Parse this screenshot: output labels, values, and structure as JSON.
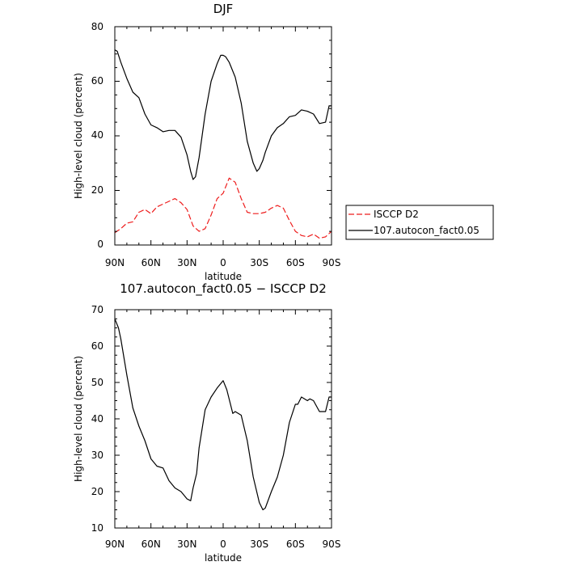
{
  "colors": {
    "model": "#000000",
    "obs": "#ee1c1c",
    "axis": "#000000"
  },
  "chart_data": [
    {
      "type": "line",
      "title": "DJF",
      "xlabel": "latitude",
      "ylabel": "High-level cloud (percent)",
      "xlim": [
        90,
        -90
      ],
      "ylim": [
        0,
        80
      ],
      "xticks": [
        90,
        60,
        30,
        0,
        -30,
        -60,
        -90
      ],
      "xtick_labels": [
        "90N",
        "60N",
        "30N",
        "0",
        "30S",
        "60S",
        "90S"
      ],
      "yticks": [
        0,
        20,
        40,
        60,
        80
      ],
      "ytick_labels": [
        "0",
        "20",
        "40",
        "60",
        "80"
      ],
      "legend": {
        "placement": "right",
        "entries": [
          "ISCCP D2",
          "107.autocon_fact0.05"
        ]
      },
      "series": [
        {
          "name": "ISCCP D2",
          "style": "dashed",
          "x": [
            90,
            85,
            80,
            75,
            70,
            65,
            60,
            55,
            50,
            45,
            40,
            35,
            30,
            25,
            20,
            15,
            10,
            5,
            0,
            -5,
            -10,
            -15,
            -20,
            -25,
            -30,
            -35,
            -40,
            -45,
            -50,
            -55,
            -60,
            -65,
            -70,
            -75,
            -80,
            -85,
            -90
          ],
          "y": [
            4.5,
            6,
            8,
            8.5,
            12,
            13,
            11.5,
            14,
            15,
            16,
            17,
            15.5,
            13,
            7,
            5,
            6,
            11,
            17,
            19,
            24.5,
            23,
            17,
            12,
            11.5,
            11.5,
            12,
            13.5,
            14.5,
            13.5,
            9,
            5,
            3.5,
            3,
            4,
            2.5,
            3,
            5
          ]
        },
        {
          "name": "107.autocon_fact0.05",
          "style": "solid",
          "x": [
            90,
            88,
            85,
            80,
            75,
            70,
            65,
            60,
            55,
            50,
            45,
            40,
            35,
            30,
            27,
            25,
            23,
            20,
            15,
            10,
            5,
            2,
            0,
            -2,
            -5,
            -10,
            -15,
            -20,
            -25,
            -28,
            -30,
            -33,
            -35,
            -40,
            -45,
            -50,
            -55,
            -60,
            -65,
            -70,
            -75,
            -80,
            -85,
            -88,
            -90
          ],
          "y": [
            71.5,
            71,
            67,
            61,
            56,
            54,
            48,
            44,
            43,
            41.5,
            42,
            42,
            39.5,
            33,
            27,
            24,
            25,
            32,
            48,
            60,
            66.5,
            69.5,
            69.5,
            69,
            67,
            61.5,
            52,
            38,
            30,
            27,
            28,
            31,
            34,
            40,
            43,
            44.5,
            47,
            47.5,
            49.5,
            49,
            48,
            44.5,
            45,
            51,
            51
          ]
        }
      ]
    },
    {
      "type": "line",
      "title": "107.autocon_fact0.05 − ISCCP D2",
      "xlabel": "latitude",
      "ylabel": "High-level cloud (percent)",
      "xlim": [
        90,
        -90
      ],
      "ylim": [
        10,
        70
      ],
      "xticks": [
        90,
        60,
        30,
        0,
        -30,
        -60,
        -90
      ],
      "xtick_labels": [
        "90N",
        "60N",
        "30N",
        "0",
        "30S",
        "60S",
        "90S"
      ],
      "yticks": [
        10,
        20,
        30,
        40,
        50,
        60,
        70
      ],
      "ytick_labels": [
        "10",
        "20",
        "30",
        "40",
        "50",
        "60",
        "70"
      ],
      "series": [
        {
          "style": "solid",
          "x": [
            90,
            87,
            85,
            80,
            75,
            70,
            65,
            60,
            55,
            50,
            45,
            40,
            35,
            30,
            27,
            25,
            22,
            20,
            15,
            10,
            5,
            0,
            -3,
            -8,
            -10,
            -15,
            -20,
            -25,
            -30,
            -33,
            -35,
            -40,
            -45,
            -50,
            -55,
            -60,
            -62,
            -65,
            -70,
            -72,
            -75,
            -80,
            -85,
            -88,
            -90
          ],
          "y": [
            67.5,
            65,
            62,
            52,
            43,
            38,
            34,
            29,
            27,
            26.5,
            23,
            21,
            20,
            18,
            17.5,
            21,
            25,
            32,
            42.5,
            46,
            48.5,
            50.5,
            48,
            41.5,
            42,
            41,
            34,
            24,
            17,
            15,
            15.5,
            20,
            24,
            30,
            39,
            44,
            44,
            46,
            45,
            45.5,
            45,
            42,
            42,
            46,
            46
          ]
        }
      ]
    }
  ]
}
